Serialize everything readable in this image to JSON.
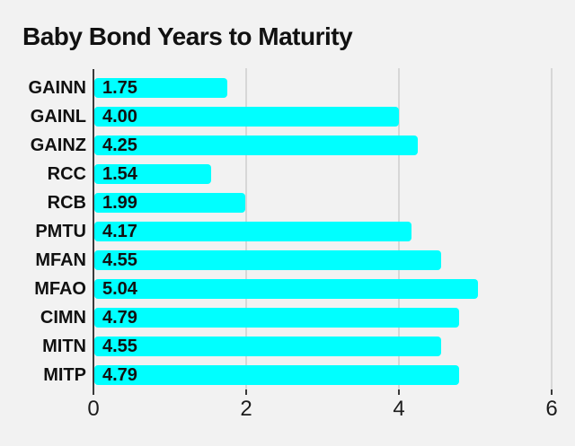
{
  "title": "Baby Bond Years to Maturity",
  "colors": {
    "background": "#f2f2f2",
    "bar": "#00ffff",
    "gridline": "#d7d7d7",
    "axis": "#3a3a3a",
    "text": "#111111"
  },
  "chart_data": {
    "type": "bar",
    "orientation": "horizontal",
    "title": "Baby Bond Years to Maturity",
    "categories": [
      "GAINN",
      "GAINL",
      "GAINZ",
      "RCC",
      "RCB",
      "PMTU",
      "MFAN",
      "MFAO",
      "CIMN",
      "MITN",
      "MITP"
    ],
    "values": [
      1.75,
      4.0,
      4.25,
      1.54,
      1.99,
      4.17,
      4.55,
      5.04,
      4.79,
      4.55,
      4.79
    ],
    "value_labels": [
      "1.75",
      "4.00",
      "4.25",
      "1.54",
      "1.99",
      "4.17",
      "4.55",
      "5.04",
      "4.79",
      "4.55",
      "4.79"
    ],
    "xlabel": "",
    "ylabel": "",
    "xlim": [
      0,
      6
    ],
    "x_ticks": [
      0,
      2,
      4,
      6
    ],
    "x_tick_labels": [
      "0",
      "2",
      "4",
      "6"
    ],
    "grid": "vertical",
    "legend": "none",
    "value_label_position": "inside-start",
    "bar_color": "#00ffff"
  }
}
